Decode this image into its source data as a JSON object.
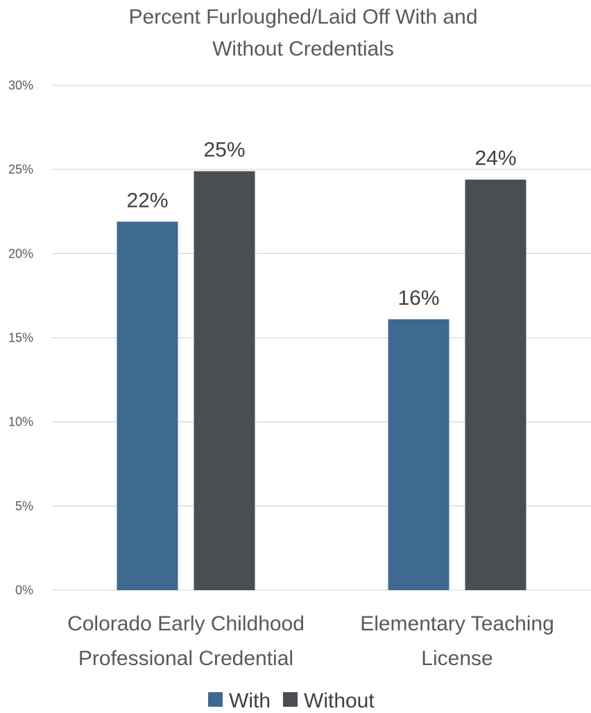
{
  "chart_data": {
    "type": "bar",
    "title": [
      "Percent Furloughed/Laid Off With and",
      "Without Credentials"
    ],
    "categories": [
      [
        "Colorado Early Childhood",
        "Professional Credential"
      ],
      [
        "Elementary Teaching",
        "License"
      ]
    ],
    "series": [
      {
        "name": "With",
        "color": "#3e6991",
        "values": [
          21.9,
          16.1
        ],
        "labels": [
          "22%",
          "16%"
        ]
      },
      {
        "name": "Without",
        "color": "#4a4d52",
        "values": [
          24.9,
          24.4
        ],
        "labels": [
          "25%",
          "24%"
        ]
      }
    ],
    "ylim": [
      0,
      30
    ],
    "yticks": [
      0,
      5,
      10,
      15,
      20,
      25,
      30
    ],
    "ytick_labels": [
      "0%",
      "5%",
      "10%",
      "15%",
      "20%",
      "25%",
      "30%"
    ],
    "grid": true,
    "legend": "bottom"
  }
}
